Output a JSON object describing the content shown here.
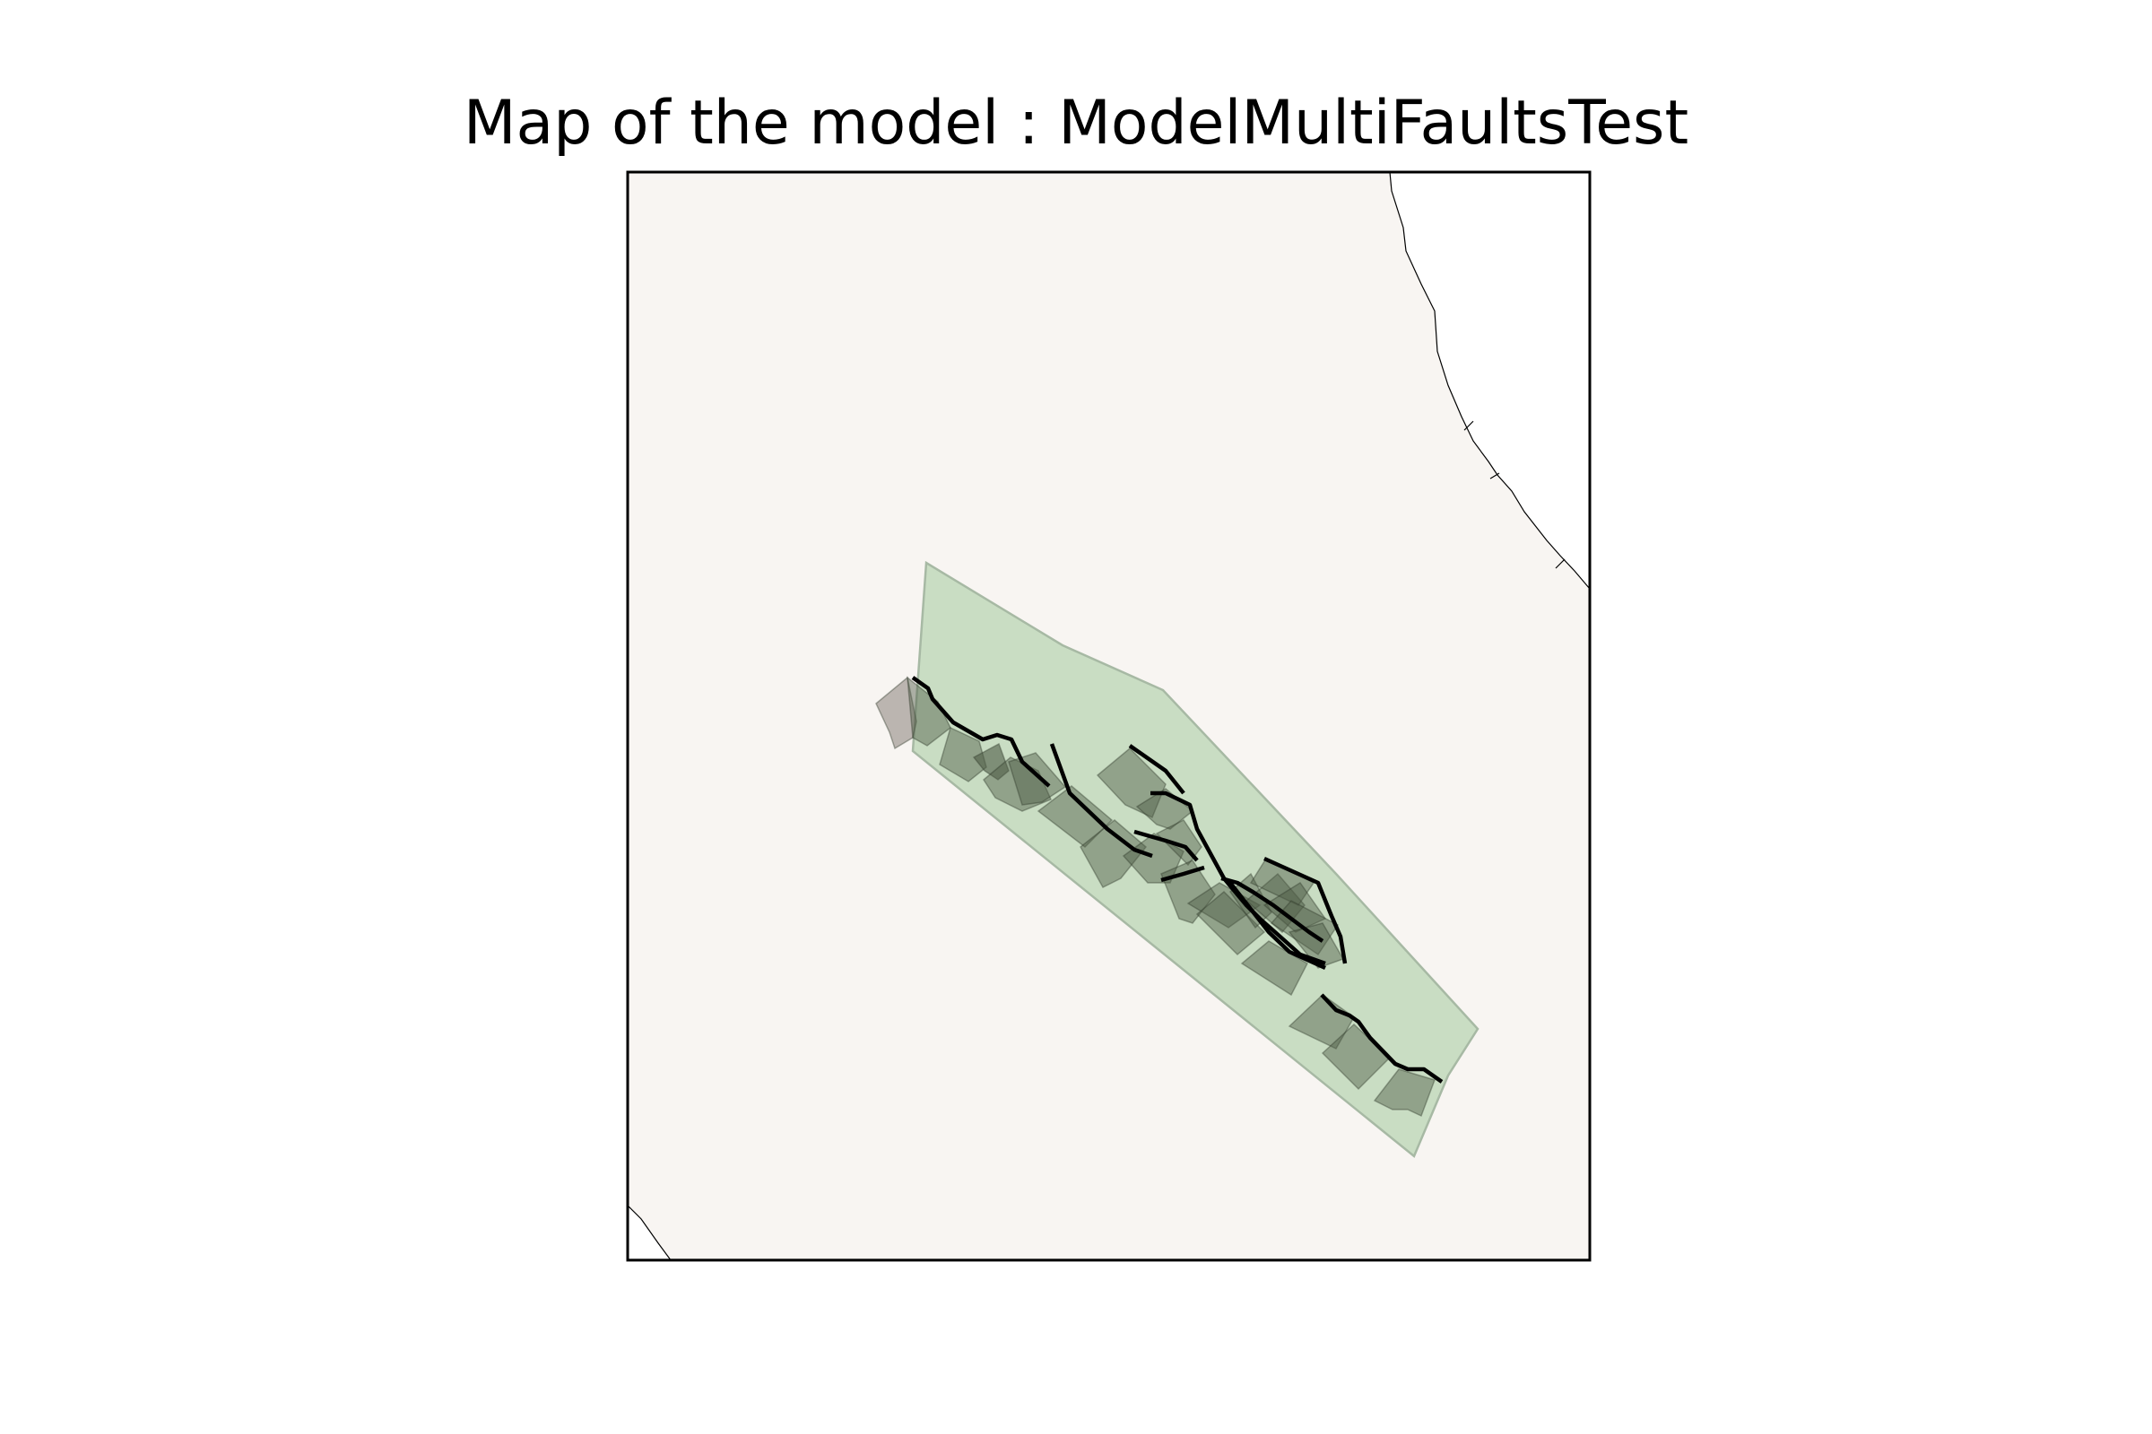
{
  "title": "Map of the model : ModelMultiFaultsTest",
  "colors": {
    "land": "#f8f5f2",
    "sea": "#ffffff",
    "coastline": "#000000",
    "model_area_fill": "#c9ddc3",
    "model_area_edge": "#a7b9a4",
    "fault_plane_fill": "#4d5a45",
    "fault_trace": "#000000",
    "frame": "#000000"
  },
  "layers": {
    "coastline": "coastline",
    "model_area": "model-area",
    "fault_planes": "fault-planes",
    "fault_traces": "fault-traces"
  }
}
